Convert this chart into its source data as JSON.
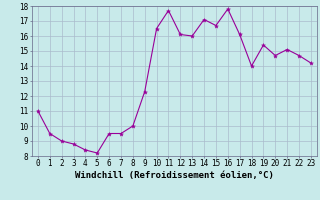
{
  "x": [
    0,
    1,
    2,
    3,
    4,
    5,
    6,
    7,
    8,
    9,
    10,
    11,
    12,
    13,
    14,
    15,
    16,
    17,
    18,
    19,
    20,
    21,
    22,
    23
  ],
  "y": [
    11.0,
    9.5,
    9.0,
    8.8,
    8.4,
    8.2,
    9.5,
    9.5,
    10.0,
    12.3,
    16.5,
    17.7,
    16.1,
    16.0,
    17.1,
    16.7,
    17.8,
    16.1,
    14.0,
    15.4,
    14.7,
    15.1,
    14.7,
    14.2
  ],
  "line_color": "#990099",
  "marker": "*",
  "marker_size": 3,
  "background_color": "#c8eaea",
  "grid_color": "#aabbcc",
  "xlabel": "Windchill (Refroidissement éolien,°C)",
  "xlabel_fontsize": 6.5,
  "xlim": [
    -0.5,
    23.5
  ],
  "ylim": [
    8,
    18
  ],
  "yticks": [
    8,
    9,
    10,
    11,
    12,
    13,
    14,
    15,
    16,
    17,
    18
  ],
  "xticks": [
    0,
    1,
    2,
    3,
    4,
    5,
    6,
    7,
    8,
    9,
    10,
    11,
    12,
    13,
    14,
    15,
    16,
    17,
    18,
    19,
    20,
    21,
    22,
    23
  ],
  "tick_fontsize": 5.5,
  "spine_color": "#666688"
}
